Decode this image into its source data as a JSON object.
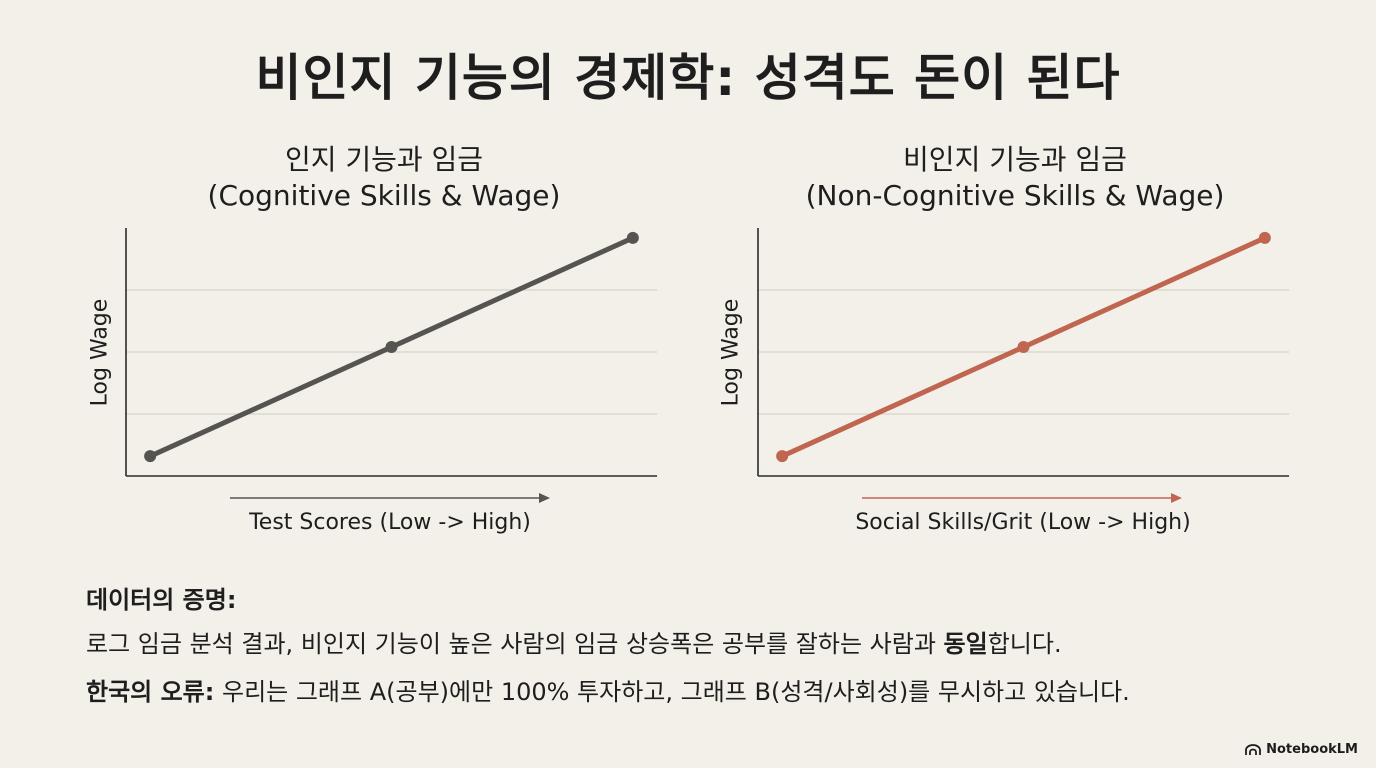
{
  "title": "비인지 기능의 경제학: 성격도 돈이 된다",
  "chart_data": [
    {
      "type": "line",
      "title": "인지 기능과 임금",
      "subtitle": "(Cognitive Skills & Wage)",
      "xlabel": "Test Scores (Low -> High)",
      "ylabel": "Log Wage",
      "x": [
        0,
        0.5,
        1
      ],
      "series": [
        {
          "values": [
            0.08,
            0.52,
            0.96
          ]
        }
      ],
      "xlim": [
        -0.05,
        1.05
      ],
      "ylim": [
        0,
        1
      ],
      "grid": true,
      "color": "#555450"
    },
    {
      "type": "line",
      "title": "비인지 기능과 임금",
      "subtitle": "(Non-Cognitive Skills & Wage)",
      "xlabel": "Social Skills/Grit (Low -> High)",
      "ylabel": "Log Wage",
      "x": [
        0,
        0.5,
        1
      ],
      "series": [
        {
          "values": [
            0.08,
            0.52,
            0.96
          ]
        }
      ],
      "xlim": [
        -0.05,
        1.05
      ],
      "ylim": [
        0,
        1
      ],
      "grid": true,
      "color": "#c0654f"
    }
  ],
  "text": {
    "evidence_heading": "데이터의 증명:",
    "line1_text": "로그 임금 분석 결과, 비인지 기능이 높은 사람의 임금 상승폭은 공부를 잘하는 사람과 ",
    "line1_bold": "동일",
    "line1_end": "합니다.",
    "line2_bold": "한국의 오류:",
    "line2_text": " 우리는 그래프 A(공부)에만 100% 투자하고, 그래프 B(성격/사회성)를 무시하고 있습니다."
  },
  "brand": {
    "label": "NotebookLM",
    "icon": "notebooklm-logo-icon"
  }
}
